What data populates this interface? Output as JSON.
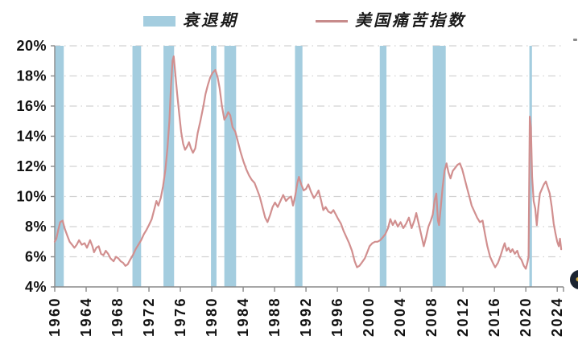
{
  "legend": {
    "recession_label": "衰退期",
    "series_label": "美国痛苦指数"
  },
  "colors": {
    "recession_band": "#a4cddf",
    "series_line": "#d18f8f",
    "legend_line": "#c78b8b",
    "grid": "#d2d2d2",
    "axis": "#8a8a8a",
    "tick_label": "#121212"
  },
  "chart_data": {
    "type": "line",
    "title": "",
    "xlabel": "",
    "ylabel": "",
    "x_range": [
      1960,
      2024.8
    ],
    "y_range": [
      4,
      20
    ],
    "y_ticks": [
      "20%",
      "18%",
      "16%",
      "14%",
      "12%",
      "10%",
      "8%",
      "6%",
      "4%"
    ],
    "x_ticks": [
      "1960",
      "1964",
      "1968",
      "1972",
      "1976",
      "1980",
      "1984",
      "1988",
      "1992",
      "1996",
      "2000",
      "2004",
      "2008",
      "2012",
      "2016",
      "2020",
      "2024"
    ],
    "grid": "horizontal dash-dot",
    "legend_position": "top",
    "recession_bands": [
      [
        1960.0,
        1961.15
      ],
      [
        1969.9,
        1971.0
      ],
      [
        1973.85,
        1975.2
      ],
      [
        1979.9,
        1980.6
      ],
      [
        1981.6,
        1983.1
      ],
      [
        1990.6,
        1991.55
      ],
      [
        2001.4,
        2002.25
      ],
      [
        2008.15,
        2009.8
      ],
      [
        2020.45,
        2020.78
      ]
    ],
    "series": [
      {
        "name": "美国痛苦指数",
        "points": [
          [
            1960.0,
            7.0
          ],
          [
            1960.2,
            7.2
          ],
          [
            1960.45,
            7.8
          ],
          [
            1960.7,
            8.3
          ],
          [
            1961.0,
            8.4
          ],
          [
            1961.25,
            7.9
          ],
          [
            1961.6,
            7.4
          ],
          [
            1961.9,
            7.0
          ],
          [
            1962.2,
            6.8
          ],
          [
            1962.5,
            6.6
          ],
          [
            1962.8,
            6.8
          ],
          [
            1963.1,
            7.1
          ],
          [
            1963.45,
            6.8
          ],
          [
            1963.8,
            6.9
          ],
          [
            1964.1,
            6.6
          ],
          [
            1964.5,
            7.1
          ],
          [
            1964.8,
            6.7
          ],
          [
            1965.0,
            6.3
          ],
          [
            1965.3,
            6.6
          ],
          [
            1965.6,
            6.7
          ],
          [
            1965.9,
            6.2
          ],
          [
            1966.2,
            6.1
          ],
          [
            1966.5,
            6.4
          ],
          [
            1966.8,
            6.2
          ],
          [
            1967.1,
            5.9
          ],
          [
            1967.5,
            5.7
          ],
          [
            1967.8,
            6.0
          ],
          [
            1968.1,
            5.9
          ],
          [
            1968.4,
            5.7
          ],
          [
            1968.7,
            5.6
          ],
          [
            1969.0,
            5.4
          ],
          [
            1969.3,
            5.5
          ],
          [
            1969.6,
            5.8
          ],
          [
            1969.95,
            6.1
          ],
          [
            1970.3,
            6.5
          ],
          [
            1970.65,
            6.8
          ],
          [
            1971.0,
            7.1
          ],
          [
            1971.35,
            7.5
          ],
          [
            1971.7,
            7.8
          ],
          [
            1972.0,
            8.1
          ],
          [
            1972.35,
            8.5
          ],
          [
            1972.7,
            9.2
          ],
          [
            1972.95,
            9.7
          ],
          [
            1973.2,
            9.4
          ],
          [
            1973.5,
            9.9
          ],
          [
            1973.8,
            10.7
          ],
          [
            1974.1,
            11.8
          ],
          [
            1974.35,
            13.2
          ],
          [
            1974.6,
            15.0
          ],
          [
            1974.8,
            17.2
          ],
          [
            1975.0,
            19.0
          ],
          [
            1975.15,
            19.3
          ],
          [
            1975.35,
            18.2
          ],
          [
            1975.6,
            16.8
          ],
          [
            1975.85,
            15.5
          ],
          [
            1976.1,
            14.3
          ],
          [
            1976.35,
            13.5
          ],
          [
            1976.6,
            13.1
          ],
          [
            1976.85,
            13.3
          ],
          [
            1977.1,
            13.6
          ],
          [
            1977.35,
            13.2
          ],
          [
            1977.6,
            12.9
          ],
          [
            1977.9,
            13.2
          ],
          [
            1978.2,
            14.2
          ],
          [
            1978.55,
            15.0
          ],
          [
            1978.9,
            15.9
          ],
          [
            1979.2,
            16.8
          ],
          [
            1979.5,
            17.4
          ],
          [
            1979.8,
            17.9
          ],
          [
            1980.1,
            18.2
          ],
          [
            1980.45,
            18.4
          ],
          [
            1980.75,
            17.9
          ],
          [
            1981.0,
            17.2
          ],
          [
            1981.3,
            16.0
          ],
          [
            1981.6,
            15.1
          ],
          [
            1981.85,
            15.3
          ],
          [
            1982.1,
            15.6
          ],
          [
            1982.35,
            15.4
          ],
          [
            1982.65,
            14.6
          ],
          [
            1983.0,
            14.3
          ],
          [
            1983.35,
            13.6
          ],
          [
            1983.7,
            12.9
          ],
          [
            1984.05,
            12.3
          ],
          [
            1984.4,
            11.8
          ],
          [
            1984.75,
            11.4
          ],
          [
            1985.1,
            11.1
          ],
          [
            1985.45,
            10.9
          ],
          [
            1985.75,
            10.5
          ],
          [
            1986.1,
            10.0
          ],
          [
            1986.45,
            9.3
          ],
          [
            1986.8,
            8.6
          ],
          [
            1987.1,
            8.3
          ],
          [
            1987.45,
            8.8
          ],
          [
            1987.75,
            9.3
          ],
          [
            1988.05,
            9.6
          ],
          [
            1988.4,
            9.3
          ],
          [
            1988.75,
            9.7
          ],
          [
            1989.1,
            10.1
          ],
          [
            1989.45,
            9.7
          ],
          [
            1989.8,
            9.9
          ],
          [
            1990.1,
            10.0
          ],
          [
            1990.35,
            9.4
          ],
          [
            1990.65,
            10.1
          ],
          [
            1990.9,
            10.9
          ],
          [
            1991.1,
            11.3
          ],
          [
            1991.4,
            10.8
          ],
          [
            1991.7,
            10.4
          ],
          [
            1992.0,
            10.5
          ],
          [
            1992.3,
            10.8
          ],
          [
            1992.65,
            10.3
          ],
          [
            1993.0,
            9.9
          ],
          [
            1993.3,
            10.1
          ],
          [
            1993.6,
            10.4
          ],
          [
            1993.9,
            9.8
          ],
          [
            1994.2,
            9.1
          ],
          [
            1994.5,
            9.3
          ],
          [
            1994.85,
            9.0
          ],
          [
            1995.2,
            8.9
          ],
          [
            1995.5,
            9.1
          ],
          [
            1995.8,
            8.8
          ],
          [
            1996.1,
            8.5
          ],
          [
            1996.45,
            8.2
          ],
          [
            1996.8,
            7.7
          ],
          [
            1997.15,
            7.3
          ],
          [
            1997.5,
            6.9
          ],
          [
            1997.85,
            6.4
          ],
          [
            1998.2,
            5.7
          ],
          [
            1998.5,
            5.3
          ],
          [
            1998.8,
            5.4
          ],
          [
            1999.1,
            5.6
          ],
          [
            1999.5,
            5.9
          ],
          [
            1999.8,
            6.3
          ],
          [
            2000.1,
            6.7
          ],
          [
            2000.45,
            6.9
          ],
          [
            2000.8,
            7.0
          ],
          [
            2001.1,
            7.0
          ],
          [
            2001.45,
            7.1
          ],
          [
            2001.8,
            7.3
          ],
          [
            2002.1,
            7.5
          ],
          [
            2002.45,
            7.9
          ],
          [
            2002.75,
            8.5
          ],
          [
            2003.05,
            8.1
          ],
          [
            2003.35,
            8.4
          ],
          [
            2003.7,
            8.0
          ],
          [
            2004.05,
            8.3
          ],
          [
            2004.4,
            7.9
          ],
          [
            2004.75,
            8.2
          ],
          [
            2005.1,
            8.6
          ],
          [
            2005.45,
            7.9
          ],
          [
            2005.8,
            8.4
          ],
          [
            2006.05,
            8.9
          ],
          [
            2006.35,
            8.2
          ],
          [
            2006.7,
            7.4
          ],
          [
            2007.0,
            6.7
          ],
          [
            2007.3,
            7.3
          ],
          [
            2007.6,
            8.0
          ],
          [
            2007.9,
            8.4
          ],
          [
            2008.15,
            8.8
          ],
          [
            2008.4,
            9.8
          ],
          [
            2008.6,
            10.2
          ],
          [
            2008.8,
            8.4
          ],
          [
            2008.95,
            8.1
          ],
          [
            2009.15,
            9.2
          ],
          [
            2009.4,
            10.6
          ],
          [
            2009.65,
            11.7
          ],
          [
            2009.9,
            12.2
          ],
          [
            2010.15,
            11.6
          ],
          [
            2010.4,
            11.2
          ],
          [
            2010.7,
            11.7
          ],
          [
            2011.0,
            11.9
          ],
          [
            2011.3,
            12.1
          ],
          [
            2011.6,
            12.2
          ],
          [
            2011.9,
            11.8
          ],
          [
            2012.2,
            11.2
          ],
          [
            2012.5,
            10.6
          ],
          [
            2012.8,
            10.0
          ],
          [
            2013.1,
            9.4
          ],
          [
            2013.45,
            9.0
          ],
          [
            2013.8,
            8.6
          ],
          [
            2014.15,
            8.3
          ],
          [
            2014.5,
            8.4
          ],
          [
            2014.8,
            7.5
          ],
          [
            2015.1,
            6.7
          ],
          [
            2015.45,
            6.0
          ],
          [
            2015.8,
            5.6
          ],
          [
            2016.1,
            5.3
          ],
          [
            2016.45,
            5.6
          ],
          [
            2016.8,
            6.1
          ],
          [
            2017.1,
            6.6
          ],
          [
            2017.3,
            6.9
          ],
          [
            2017.55,
            6.4
          ],
          [
            2017.8,
            6.6
          ],
          [
            2018.05,
            6.3
          ],
          [
            2018.3,
            6.5
          ],
          [
            2018.6,
            6.2
          ],
          [
            2018.9,
            6.4
          ],
          [
            2019.15,
            6.0
          ],
          [
            2019.45,
            5.8
          ],
          [
            2019.75,
            5.4
          ],
          [
            2020.0,
            5.2
          ],
          [
            2020.2,
            5.6
          ],
          [
            2020.35,
            6.0
          ],
          [
            2020.5,
            15.3
          ],
          [
            2020.65,
            14.6
          ],
          [
            2020.8,
            11.3
          ],
          [
            2021.0,
            9.7
          ],
          [
            2021.2,
            9.2
          ],
          [
            2021.4,
            8.1
          ],
          [
            2021.6,
            9.3
          ],
          [
            2021.8,
            10.2
          ],
          [
            2022.05,
            10.5
          ],
          [
            2022.3,
            10.8
          ],
          [
            2022.55,
            11.0
          ],
          [
            2022.8,
            10.6
          ],
          [
            2023.05,
            10.2
          ],
          [
            2023.3,
            9.3
          ],
          [
            2023.55,
            8.2
          ],
          [
            2023.8,
            7.5
          ],
          [
            2024.0,
            7.0
          ],
          [
            2024.2,
            6.7
          ],
          [
            2024.35,
            7.2
          ],
          [
            2024.5,
            6.5
          ]
        ]
      }
    ]
  }
}
